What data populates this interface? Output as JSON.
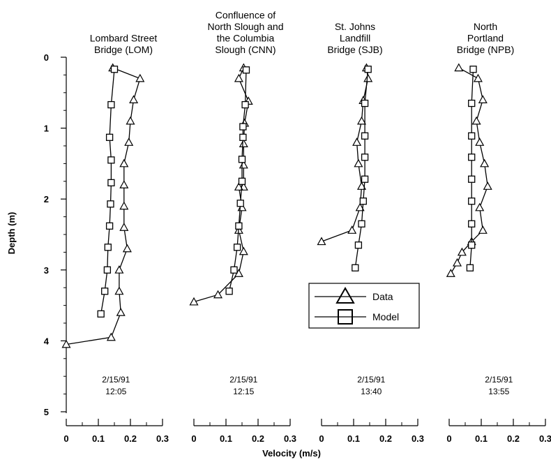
{
  "chart_data": {
    "type": "line",
    "ylabel": "Depth (m)",
    "xlabel": "Velocity (m/s)",
    "ylim": [
      5,
      0
    ],
    "xlim": [
      0,
      0.3
    ],
    "y_ticks": [
      "0",
      "1",
      "2",
      "3",
      "4",
      "5"
    ],
    "x_ticks": [
      "0",
      "0.1",
      "0.2",
      "0.3"
    ],
    "legend": {
      "position": "inside-third-panel-lower",
      "entries": [
        "Data",
        "Model"
      ]
    },
    "panels": [
      {
        "title": [
          "Lombard Street",
          "Bridge (LOM)"
        ],
        "date": "2/15/91",
        "time": "12:05",
        "series": [
          {
            "name": "Data",
            "marker": "triangle",
            "points": [
              [
                0.145,
                0.15
              ],
              [
                0.23,
                0.3
              ],
              [
                0.21,
                0.6
              ],
              [
                0.2,
                0.9
              ],
              [
                0.195,
                1.2
              ],
              [
                0.18,
                1.5
              ],
              [
                0.18,
                1.8
              ],
              [
                0.18,
                2.1
              ],
              [
                0.18,
                2.4
              ],
              [
                0.19,
                2.7
              ],
              [
                0.165,
                3.0
              ],
              [
                0.165,
                3.3
              ],
              [
                0.17,
                3.6
              ],
              [
                0.14,
                3.95
              ],
              [
                0.0,
                4.05
              ]
            ]
          },
          {
            "name": "Model",
            "marker": "square",
            "points": [
              [
                0.15,
                0.17
              ],
              [
                0.14,
                0.67
              ],
              [
                0.135,
                1.13
              ],
              [
                0.14,
                1.45
              ],
              [
                0.14,
                1.77
              ],
              [
                0.138,
                2.07
              ],
              [
                0.135,
                2.38
              ],
              [
                0.13,
                2.68
              ],
              [
                0.128,
                3.0
              ],
              [
                0.12,
                3.3
              ],
              [
                0.108,
                3.62
              ]
            ]
          }
        ]
      },
      {
        "title": [
          "Confluence of",
          "North Slough and",
          "the Columbia",
          "Slough (CNN)"
        ],
        "date": "2/15/91",
        "time": "12:15",
        "series": [
          {
            "name": "Data",
            "marker": "triangle",
            "points": [
              [
                0.155,
                0.15
              ],
              [
                0.14,
                0.3
              ],
              [
                0.17,
                0.62
              ],
              [
                0.158,
                0.93
              ],
              [
                0.155,
                1.22
              ],
              [
                0.155,
                1.52
              ],
              [
                0.155,
                1.83
              ],
              [
                0.14,
                1.83
              ],
              [
                0.15,
                2.12
              ],
              [
                0.14,
                2.44
              ],
              [
                0.155,
                2.74
              ],
              [
                0.14,
                3.05
              ],
              [
                0.075,
                3.35
              ],
              [
                0.0,
                3.45
              ]
            ]
          },
          {
            "name": "Model",
            "marker": "square",
            "points": [
              [
                0.163,
                0.18
              ],
              [
                0.16,
                0.67
              ],
              [
                0.153,
                0.98
              ],
              [
                0.153,
                1.13
              ],
              [
                0.15,
                1.44
              ],
              [
                0.15,
                1.75
              ],
              [
                0.145,
                2.06
              ],
              [
                0.14,
                2.38
              ],
              [
                0.135,
                2.68
              ],
              [
                0.125,
                3.0
              ],
              [
                0.11,
                3.3
              ]
            ]
          }
        ]
      },
      {
        "title": [
          "St. Johns",
          "Landfill",
          "Bridge (SJB)"
        ],
        "date": "2/15/91",
        "time": "13:40",
        "series": [
          {
            "name": "Data",
            "marker": "triangle",
            "points": [
              [
                0.14,
                0.15
              ],
              [
                0.145,
                0.3
              ],
              [
                0.13,
                0.61
              ],
              [
                0.125,
                0.9
              ],
              [
                0.11,
                1.2
              ],
              [
                0.115,
                1.5
              ],
              [
                0.125,
                1.82
              ],
              [
                0.12,
                2.12
              ],
              [
                0.095,
                2.44
              ],
              [
                0.0,
                2.6
              ]
            ]
          },
          {
            "name": "Model",
            "marker": "square",
            "points": [
              [
                0.145,
                0.17
              ],
              [
                0.135,
                0.65
              ],
              [
                0.135,
                1.11
              ],
              [
                0.135,
                1.41
              ],
              [
                0.135,
                1.72
              ],
              [
                0.13,
                2.03
              ],
              [
                0.125,
                2.35
              ],
              [
                0.115,
                2.65
              ],
              [
                0.105,
                2.97
              ]
            ]
          }
        ]
      },
      {
        "title": [
          "North",
          "Portland",
          "Bridge (NPB)"
        ],
        "date": "2/15/91",
        "time": "13:55",
        "series": [
          {
            "name": "Data",
            "marker": "triangle",
            "points": [
              [
                0.03,
                0.15
              ],
              [
                0.09,
                0.3
              ],
              [
                0.105,
                0.6
              ],
              [
                0.085,
                0.9
              ],
              [
                0.095,
                1.2
              ],
              [
                0.11,
                1.5
              ],
              [
                0.12,
                1.82
              ],
              [
                0.095,
                2.12
              ],
              [
                0.105,
                2.44
              ],
              [
                0.07,
                2.6
              ],
              [
                0.04,
                2.75
              ],
              [
                0.025,
                2.9
              ],
              [
                0.005,
                3.05
              ]
            ]
          },
          {
            "name": "Model",
            "marker": "square",
            "points": [
              [
                0.075,
                0.17
              ],
              [
                0.07,
                0.65
              ],
              [
                0.07,
                1.11
              ],
              [
                0.07,
                1.41
              ],
              [
                0.07,
                1.72
              ],
              [
                0.07,
                2.03
              ],
              [
                0.07,
                2.35
              ],
              [
                0.07,
                2.65
              ],
              [
                0.065,
                2.97
              ]
            ]
          }
        ]
      }
    ]
  }
}
